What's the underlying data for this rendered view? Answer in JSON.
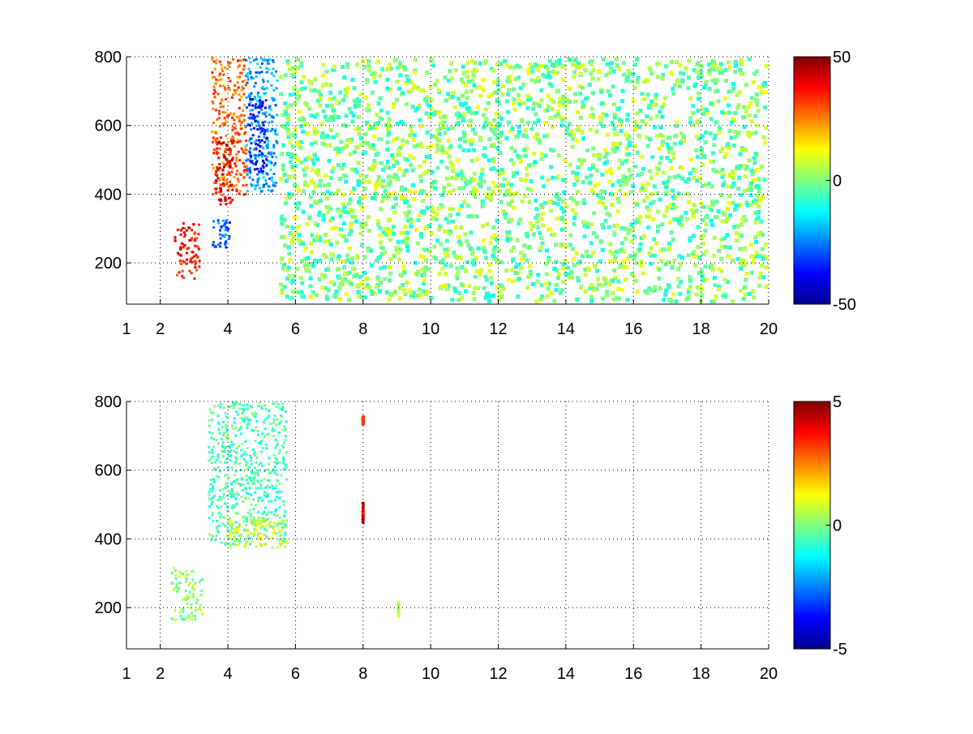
{
  "chart_data": [
    {
      "type": "heatmap",
      "title": "",
      "xlabel": "",
      "ylabel": "",
      "xlim": [
        1,
        20
      ],
      "ylim": [
        80,
        800
      ],
      "xticks": [
        1,
        2,
        4,
        6,
        8,
        10,
        12,
        14,
        16,
        18,
        20
      ],
      "xtick_labels": [
        "1",
        "2",
        "4",
        "6",
        "8",
        "10",
        "12",
        "14",
        "16",
        "18",
        "20"
      ],
      "yticks": [
        200,
        400,
        600,
        800
      ],
      "ytick_labels": [
        "200",
        "400",
        "600",
        "800"
      ],
      "grid": true,
      "colormap": "jet",
      "clim": [
        -50,
        50
      ],
      "colorbar_ticks": [
        50,
        0,
        -50
      ],
      "colorbar_labels": [
        "50",
        "0",
        "-50"
      ],
      "features": [
        {
          "x": [
            2.4,
            3.2
          ],
          "y": [
            150,
            320
          ],
          "value": 35
        },
        {
          "x": [
            3.5,
            4.6
          ],
          "y": [
            380,
            800
          ],
          "value": 28
        },
        {
          "x": [
            3.6,
            4.2
          ],
          "y": [
            360,
            560
          ],
          "value": 40
        },
        {
          "x": [
            4.5,
            5.5
          ],
          "y": [
            400,
            800
          ],
          "value": -22
        },
        {
          "x": [
            4.6,
            5.2
          ],
          "y": [
            460,
            680
          ],
          "value": -38
        },
        {
          "x": [
            3.5,
            4.1
          ],
          "y": [
            240,
            330
          ],
          "value": -28
        },
        {
          "x": [
            5.5,
            20
          ],
          "y": [
            80,
            800
          ],
          "value": 0
        }
      ]
    },
    {
      "type": "heatmap",
      "title": "",
      "xlabel": "",
      "ylabel": "",
      "xlim": [
        1,
        20
      ],
      "ylim": [
        80,
        800
      ],
      "xticks": [
        1,
        2,
        4,
        6,
        8,
        10,
        12,
        14,
        16,
        18,
        20
      ],
      "xtick_labels": [
        "1",
        "2",
        "4",
        "6",
        "8",
        "10",
        "12",
        "14",
        "16",
        "18",
        "20"
      ],
      "yticks": [
        200,
        400,
        600,
        800
      ],
      "ytick_labels": [
        "200",
        "400",
        "600",
        "800"
      ],
      "grid": true,
      "colormap": "jet",
      "clim": [
        -5,
        5
      ],
      "colorbar_ticks": [
        5,
        0,
        -5
      ],
      "colorbar_labels": [
        "5",
        "0",
        "-5"
      ],
      "features": [
        {
          "x": [
            3.4,
            5.8
          ],
          "y": [
            380,
            800
          ],
          "value": -0.5
        },
        {
          "x": [
            4.0,
            5.8
          ],
          "y": [
            370,
            460
          ],
          "value": 1.0
        },
        {
          "x": [
            2.3,
            3.3
          ],
          "y": [
            160,
            320
          ],
          "value": 0.2
        },
        {
          "x": [
            7.95,
            8.05
          ],
          "y": [
            730,
            760
          ],
          "value": 3.5
        },
        {
          "x": [
            7.95,
            8.05
          ],
          "y": [
            440,
            510
          ],
          "value": 4.0
        },
        {
          "x": [
            9.0,
            9.1
          ],
          "y": [
            170,
            220
          ],
          "value": 0.5
        }
      ]
    }
  ]
}
